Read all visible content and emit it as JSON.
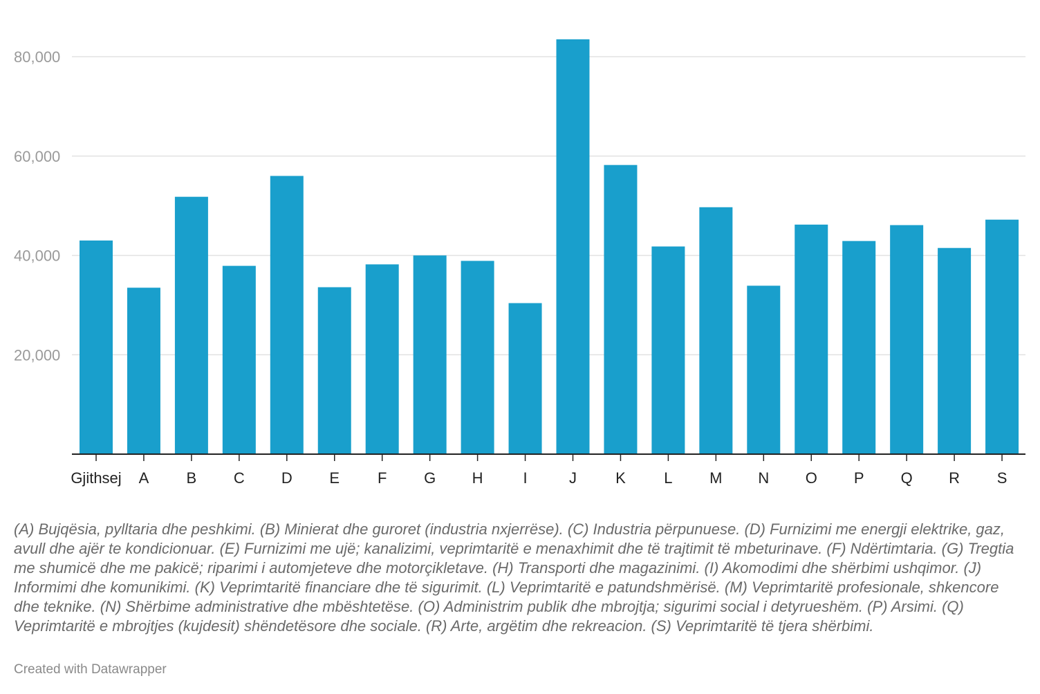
{
  "chart_data": {
    "type": "bar",
    "categories": [
      "Gjithsej",
      "A",
      "B",
      "C",
      "D",
      "E",
      "F",
      "G",
      "H",
      "I",
      "J",
      "K",
      "L",
      "M",
      "N",
      "O",
      "P",
      "Q",
      "R",
      "S"
    ],
    "values": [
      43000,
      33500,
      51800,
      37900,
      56000,
      33600,
      38200,
      40000,
      38900,
      30400,
      83500,
      58200,
      41800,
      49700,
      33900,
      46200,
      42900,
      46100,
      41500,
      47200
    ],
    "ylim": [
      0,
      88000
    ],
    "yticks": [
      20000,
      40000,
      60000,
      80000
    ],
    "ytick_labels": [
      "20,000",
      "40,000",
      "60,000",
      "80,000"
    ],
    "grid": true,
    "bar_color": "#199fcc"
  },
  "footnote": "(A) Bujqësia, pylltaria dhe peshkimi. (B) Minierat dhe guroret (industria nxjerrëse). (C) Industria përpunuese. (D) Furnizimi me energji elektrike, gaz, avull dhe ajër te kondicionuar. (E) Furnizimi me ujë; kanalizimi, veprimtaritë e menaxhimit dhe të trajtimit të mbeturinave. (F) Ndërtimtaria. (G) Tregtia me shumicë dhe me pakicë; riparimi i automjeteve dhe motorçikletave. (H) Transporti dhe magazinimi. (I) Akomodimi dhe shërbimi ushqimor. (J) Informimi dhe komunikimi. (K) Veprimtaritë financiare dhe të sigurimit. (L) Veprimtaritë e patundshmërisë. (M) Veprimtaritë profesionale, shkencore dhe teknike. (N) Shërbime administrative dhe mbështetëse. (O) Administrim publik dhe mbrojtja; sigurimi social i detyrueshëm. (P) Arsimi. (Q) Veprimtaritë e mbrojtjes (kujdesit) shëndetësore dhe sociale. (R) Arte, argëtim dhe rekreacion. (S) Veprimtaritë të tjera shërbimi.",
  "credit": "Created with Datawrapper"
}
